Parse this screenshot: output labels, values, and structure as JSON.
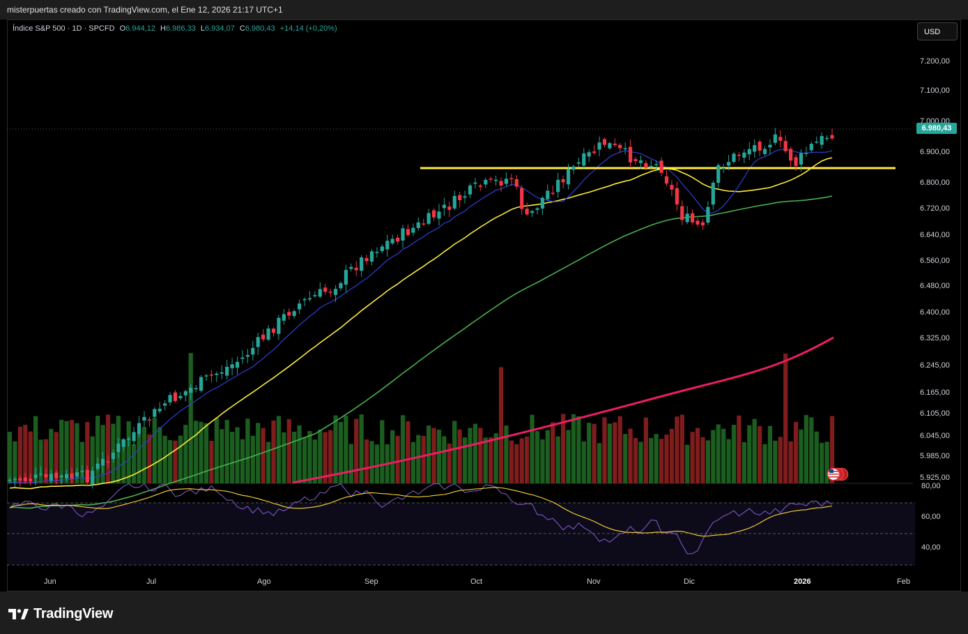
{
  "header": {
    "credit": "misterpuertas creado con TradingView.com, el Ene 12, 2026 21:17 UTC+1"
  },
  "legend": {
    "symbol": "Índice S&P 500 · 1D · SPCFD",
    "open_key": "O",
    "open": "6.944,12",
    "high_key": "H",
    "high": "6.986,33",
    "low_key": "L",
    "low": "6.934,07",
    "close_key": "C",
    "close": "6.980,43",
    "change": "+14,14 (+0,20%)"
  },
  "currency_button": "USD",
  "last_price": "6.980,43",
  "price_axis": [
    "7.200,00",
    "7.100,00",
    "7.000,00",
    "6.900,00",
    "6.800,00",
    "6.720,00",
    "6.640,00",
    "6.560,00",
    "6.480,00",
    "6.400,00",
    "6.325,00",
    "6.245,00",
    "6.165,00",
    "6.105,00",
    "6.045,00",
    "5.985,00",
    "5.925,00"
  ],
  "time_axis": [
    {
      "label": "Jun",
      "bold": false
    },
    {
      "label": "Jul",
      "bold": false
    },
    {
      "label": "Ago",
      "bold": false
    },
    {
      "label": "Sep",
      "bold": false
    },
    {
      "label": "Oct",
      "bold": false
    },
    {
      "label": "Nov",
      "bold": false
    },
    {
      "label": "Dic",
      "bold": false
    },
    {
      "label": "2026",
      "bold": true
    },
    {
      "label": "Feb",
      "bold": false
    }
  ],
  "rsi_axis": [
    "80,00",
    "60,00",
    "40,00"
  ],
  "colors": {
    "up": "#26a69a",
    "down": "#f23645",
    "ma_fast": "#2f3fd8",
    "ma_mid": "#ffeb3b",
    "ma_slow": "#4caf50",
    "ma_long": "#e91e63",
    "support": "#ffeb3b",
    "rsi": "#7e57c2",
    "rsi_ma": "#fdd835",
    "vol_up": "#1b5e20",
    "vol_down": "#7f1d1d"
  },
  "icons": {
    "flag": "us-flag-icon",
    "logo": "tradingview-logo-icon"
  },
  "footer": {
    "brand": "TradingView"
  }
}
